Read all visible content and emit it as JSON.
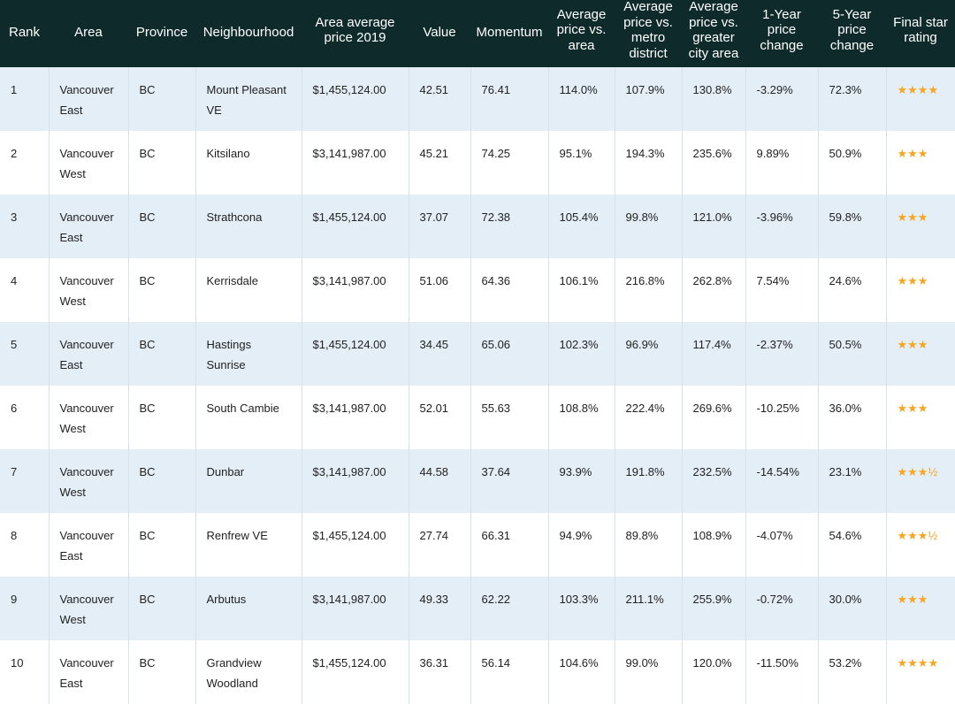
{
  "headers": [
    {
      "id": "rank",
      "label": "Rank"
    },
    {
      "id": "area",
      "label": "Area"
    },
    {
      "id": "province",
      "label": "Province"
    },
    {
      "id": "neighbourhood",
      "label": "Neighbourhood"
    },
    {
      "id": "area_avg_price",
      "label": "Area average price 2019"
    },
    {
      "id": "value",
      "label": "Value"
    },
    {
      "id": "momentum",
      "label": "Momentum"
    },
    {
      "id": "avg_vs_area",
      "label": "Average price vs. area"
    },
    {
      "id": "avg_vs_metro",
      "label": "Average price vs. metro district"
    },
    {
      "id": "avg_vs_city",
      "label": "Average price vs. greater city area"
    },
    {
      "id": "one_year",
      "label": "1-Year price change"
    },
    {
      "id": "five_year",
      "label": "5-Year price change"
    },
    {
      "id": "stars",
      "label": "Final star rating"
    }
  ],
  "rows": [
    [
      "1",
      "Vancouver East",
      "BC",
      "Mount Pleasant VE",
      "$1,455,124.00",
      "42.51",
      "76.41",
      "114.0%",
      "107.9%",
      "130.8%",
      "-3.29%",
      "72.3%",
      "★★★★"
    ],
    [
      "2",
      "Vancouver West",
      "BC",
      "Kitsilano",
      "$3,141,987.00",
      "45.21",
      "74.25",
      "95.1%",
      "194.3%",
      "235.6%",
      "9.89%",
      "50.9%",
      "★★★"
    ],
    [
      "3",
      "Vancouver East",
      "BC",
      "Strathcona",
      "$1,455,124.00",
      "37.07",
      "72.38",
      "105.4%",
      "99.8%",
      "121.0%",
      "-3.96%",
      "59.8%",
      "★★★"
    ],
    [
      "4",
      "Vancouver West",
      "BC",
      "Kerrisdale",
      "$3,141,987.00",
      "51.06",
      "64.36",
      "106.1%",
      "216.8%",
      "262.8%",
      "7.54%",
      "24.6%",
      "★★★"
    ],
    [
      "5",
      "Vancouver East",
      "BC",
      "Hastings Sunrise",
      "$1,455,124.00",
      "34.45",
      "65.06",
      "102.3%",
      "96.9%",
      "117.4%",
      "-2.37%",
      "50.5%",
      "★★★"
    ],
    [
      "6",
      "Vancouver West",
      "BC",
      "South Cambie",
      "$3,141,987.00",
      "52.01",
      "55.63",
      "108.8%",
      "222.4%",
      "269.6%",
      "-10.25%",
      "36.0%",
      "★★★"
    ],
    [
      "7",
      "Vancouver West",
      "BC",
      "Dunbar",
      "$3,141,987.00",
      "44.58",
      "37.64",
      "93.9%",
      "191.8%",
      "232.5%",
      "-14.54%",
      "23.1%",
      "★★★½"
    ],
    [
      "8",
      "Vancouver East",
      "BC",
      "Renfrew VE",
      "$1,455,124.00",
      "27.74",
      "66.31",
      "94.9%",
      "89.8%",
      "108.9%",
      "-4.07%",
      "54.6%",
      "★★★½"
    ],
    [
      "9",
      "Vancouver West",
      "BC",
      "Arbutus",
      "$3,141,987.00",
      "49.33",
      "62.22",
      "103.3%",
      "211.1%",
      "255.9%",
      "-0.72%",
      "30.0%",
      "★★★"
    ],
    [
      "10",
      "Vancouver East",
      "BC",
      "Grandview Woodland",
      "$1,455,124.00",
      "36.31",
      "56.14",
      "104.6%",
      "99.0%",
      "120.0%",
      "-11.50%",
      "53.2%",
      "★★★★"
    ]
  ],
  "colors": {
    "header_bg": "#0f2a2a",
    "row_alt_bg": "#e4eef6",
    "star_color": "#f5a623"
  }
}
